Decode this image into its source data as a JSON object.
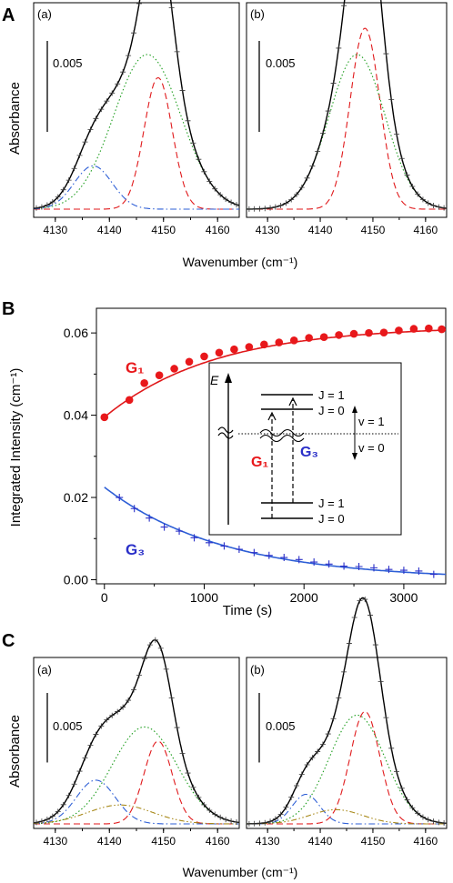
{
  "panels": [
    {
      "letter": "A"
    },
    {
      "letter": "B"
    },
    {
      "letter": "C"
    }
  ],
  "colors": {
    "fit": "#000000",
    "red": "#e0191b",
    "green": "#1e9e1e",
    "blue": "#2e5fd6",
    "olive": "#a8891a",
    "g1_point": "#e8181b",
    "g3_point": "#2a2fc8"
  },
  "chart_data": [
    {
      "type": "line",
      "panel": "A",
      "subpanel": "(a)",
      "xlabel": "Wavenumber (cm⁻¹)",
      "ylabel": "Absorbance",
      "xlim": [
        4126,
        4164
      ],
      "xticks": [
        "4130",
        "4140",
        "4150",
        "4160"
      ],
      "scale_bar": "0.005",
      "series": [
        {
          "kind": "gaussian",
          "style": "dashed",
          "color": "red",
          "center": 4149.0,
          "width": 2.6,
          "amplitude": 0.0085
        },
        {
          "kind": "gaussian",
          "style": "dotted",
          "color": "green",
          "center": 4147.0,
          "width": 6.2,
          "amplitude": 0.01
        },
        {
          "kind": "gaussian",
          "style": "dashdot",
          "color": "blue",
          "center": 4137.0,
          "width": 3.5,
          "amplitude": 0.0028
        },
        {
          "kind": "sum",
          "style": "solid",
          "color": "fit",
          "markers": "plus"
        }
      ]
    },
    {
      "type": "line",
      "panel": "A",
      "subpanel": "(b)",
      "xlabel": "Wavenumber (cm⁻¹)",
      "xlim": [
        4126,
        4164
      ],
      "xticks": [
        "4130",
        "4140",
        "4150",
        "4160"
      ],
      "scale_bar": "0.005",
      "series": [
        {
          "kind": "gaussian",
          "style": "dashed",
          "color": "red",
          "center": 4148.5,
          "width": 2.8,
          "amplitude": 0.0117
        },
        {
          "kind": "gaussian",
          "style": "dotted",
          "color": "green",
          "center": 4147.0,
          "width": 5.3,
          "amplitude": 0.01
        },
        {
          "kind": "sum",
          "style": "solid",
          "color": "fit",
          "markers": "plus"
        }
      ]
    },
    {
      "type": "line",
      "panel": "B",
      "xlabel": "Time (s)",
      "ylabel": "Integrated Intensity (cm⁻¹)",
      "xlim": [
        -80,
        3420
      ],
      "ylim": [
        -0.001,
        0.066
      ],
      "xticks": [
        0,
        1000,
        2000,
        3000
      ],
      "yticks": [
        "0.00",
        "0.02",
        "0.04",
        "0.06"
      ],
      "series": [
        {
          "name": "G₁",
          "color": "g1_point",
          "marker": "circle",
          "fit": {
            "kind": "rise",
            "start": 0.0395,
            "plateau": 0.0617,
            "tau": 1100
          },
          "x": [
            0,
            250,
            400,
            550,
            700,
            850,
            1000,
            1150,
            1300,
            1450,
            1600,
            1750,
            1900,
            2050,
            2200,
            2350,
            2500,
            2650,
            2800,
            2950,
            3100,
            3250,
            3380
          ],
          "y": [
            0.0395,
            0.0437,
            0.0478,
            0.0497,
            0.0513,
            0.053,
            0.0543,
            0.0552,
            0.056,
            0.0566,
            0.0572,
            0.0577,
            0.0582,
            0.0588,
            0.059,
            0.0595,
            0.0598,
            0.06,
            0.0601,
            0.0606,
            0.061,
            0.0611,
            0.0609
          ]
        },
        {
          "name": "G₃",
          "color": "g3_point",
          "marker": "plus",
          "fit": {
            "kind": "decay",
            "start": 0.0225,
            "tau": 1200
          },
          "x": [
            150,
            300,
            450,
            600,
            750,
            900,
            1050,
            1200,
            1350,
            1500,
            1650,
            1800,
            1950,
            2100,
            2250,
            2400,
            2550,
            2700,
            2850,
            3000,
            3150,
            3300
          ],
          "y": [
            0.02,
            0.0173,
            0.015,
            0.0128,
            0.0118,
            0.0102,
            0.009,
            0.0082,
            0.0074,
            0.0066,
            0.0059,
            0.0054,
            0.0049,
            0.0043,
            0.0038,
            0.0033,
            0.0032,
            0.0029,
            0.0025,
            0.0023,
            0.0021,
            0.0013
          ]
        }
      ],
      "inset": {
        "e_label": "E",
        "upper_j1": "J = 1",
        "upper_j0": "J = 0",
        "lower_j1": "J = 1",
        "lower_j0": "J = 0",
        "v1": "v = 1",
        "v0": "v = 0",
        "g1": "G₁",
        "g3": "G₃"
      }
    },
    {
      "type": "line",
      "panel": "C",
      "subpanel": "(a)",
      "xlabel": "Wavenumber (cm⁻¹)",
      "ylabel": "Absorbance",
      "xlim": [
        4126,
        4164
      ],
      "xticks": [
        "4130",
        "4140",
        "4150",
        "4160"
      ],
      "scale_bar": "0.005",
      "series": [
        {
          "kind": "gaussian",
          "style": "dashed",
          "color": "red",
          "center": 4149.0,
          "width": 2.6,
          "amplitude": 0.007
        },
        {
          "kind": "gaussian",
          "style": "dotted",
          "color": "green",
          "center": 4146.5,
          "width": 6.0,
          "amplitude": 0.0082
        },
        {
          "kind": "gaussian",
          "style": "dashdot",
          "color": "blue",
          "center": 4137.5,
          "width": 3.6,
          "amplitude": 0.0037
        },
        {
          "kind": "gaussian",
          "style": "dashdotdot",
          "color": "olive",
          "center": 4142.0,
          "width": 6.0,
          "amplitude": 0.0016
        },
        {
          "kind": "sum",
          "style": "solid",
          "color": "fit",
          "markers": "plus"
        }
      ]
    },
    {
      "type": "line",
      "panel": "C",
      "subpanel": "(b)",
      "xlabel": "Wavenumber (cm⁻¹)",
      "xlim": [
        4126,
        4164
      ],
      "xticks": [
        "4130",
        "4140",
        "4150",
        "4160"
      ],
      "scale_bar": "0.005",
      "series": [
        {
          "kind": "gaussian",
          "style": "dashed",
          "color": "red",
          "center": 4148.5,
          "width": 2.8,
          "amplitude": 0.0095
        },
        {
          "kind": "gaussian",
          "style": "dotted",
          "color": "green",
          "center": 4147.0,
          "width": 5.3,
          "amplitude": 0.0092
        },
        {
          "kind": "gaussian",
          "style": "dashdot",
          "color": "blue",
          "center": 4137.3,
          "width": 2.6,
          "amplitude": 0.0025
        },
        {
          "kind": "gaussian",
          "style": "dashdotdot",
          "color": "olive",
          "center": 4143.0,
          "width": 5.0,
          "amplitude": 0.0012
        },
        {
          "kind": "sum",
          "style": "solid",
          "color": "fit",
          "markers": "plus"
        }
      ]
    }
  ]
}
